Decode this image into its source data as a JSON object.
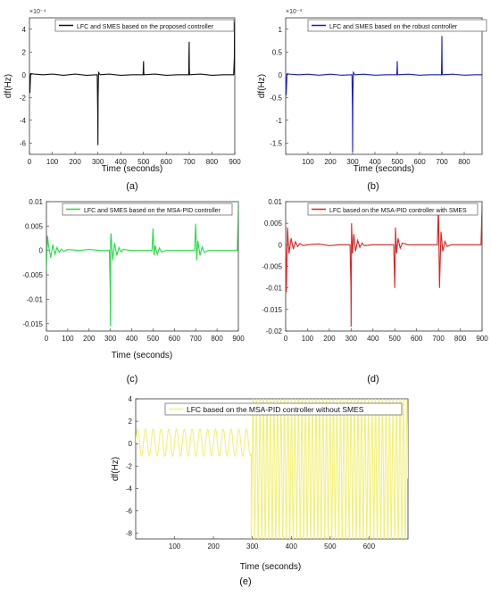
{
  "figure_labels": [
    "(a)",
    "(b)",
    "(c)",
    "(d)",
    "(e)"
  ],
  "chart_data": [
    {
      "type": "line",
      "panel_label": "(a)",
      "title": "",
      "xlabel": "Time (seconds)",
      "ylabel": "df(Hz)",
      "y_exponent": "×10⁻⁴",
      "xlim": [
        0,
        900
      ],
      "ylim": [
        -7,
        5
      ],
      "xticks": [
        0,
        100,
        200,
        300,
        400,
        500,
        600,
        700,
        800,
        900
      ],
      "yticks": [
        4,
        2,
        0,
        -2,
        -4,
        -6
      ],
      "legend_position": "top",
      "series": [
        {
          "name": "LFC and SMES based on the proposed controller",
          "color": "#111111",
          "x": [
            0,
            2,
            5,
            20,
            60,
            100,
            150,
            200,
            250,
            297,
            299,
            300,
            301,
            303,
            310,
            350,
            400,
            450,
            498,
            499,
            500,
            501,
            502,
            550,
            600,
            650,
            698,
            699,
            700,
            701,
            702,
            750,
            800,
            850,
            895,
            898,
            899,
            900
          ],
          "y": [
            0,
            -1.6,
            0.1,
            0.05,
            0,
            0.05,
            -0.05,
            0.05,
            -0.05,
            0,
            -3,
            -6.2,
            -2,
            0.2,
            0,
            0.05,
            -0.05,
            0,
            0,
            0.6,
            1.2,
            0.3,
            0,
            0.05,
            -0.05,
            0,
            0,
            1.5,
            2.9,
            0.5,
            0,
            0.05,
            -0.05,
            0,
            0,
            1.5,
            4.6,
            0
          ]
        }
      ]
    },
    {
      "type": "line",
      "panel_label": "(b)",
      "title": "",
      "xlabel": "Time (seconds)",
      "ylabel": "df(Hz)",
      "y_exponent": "×10⁻³",
      "xlim": [
        0,
        880
      ],
      "ylim": [
        -1.75,
        1.25
      ],
      "xticks": [
        100,
        200,
        300,
        400,
        500,
        600,
        700,
        800
      ],
      "yticks": [
        1,
        0.5,
        0,
        -0.5,
        -1,
        -1.5
      ],
      "legend_position": "top",
      "series": [
        {
          "name": "LFC and SMES based on the robust controller",
          "color": "#1a1acc",
          "x": [
            0,
            2,
            6,
            20,
            60,
            100,
            150,
            200,
            250,
            297,
            299,
            300,
            301,
            303,
            310,
            350,
            400,
            450,
            498,
            499,
            500,
            501,
            502,
            550,
            600,
            650,
            698,
            699,
            700,
            701,
            702,
            750,
            800,
            850,
            880
          ],
          "y": [
            0,
            -0.45,
            0.02,
            0.01,
            0,
            0.01,
            -0.01,
            0.01,
            -0.01,
            0,
            -0.8,
            -1.7,
            -0.4,
            0.05,
            0,
            0.01,
            -0.01,
            0,
            0,
            0.15,
            0.3,
            0.05,
            0,
            0.01,
            -0.01,
            0,
            0,
            0.4,
            0.85,
            0.1,
            0,
            0.01,
            -0.01,
            0,
            0
          ]
        }
      ]
    },
    {
      "type": "line",
      "panel_label": "(c)",
      "title": "",
      "xlabel": "Time (seconds)",
      "ylabel": "",
      "xlim": [
        0,
        900
      ],
      "ylim": [
        -0.0165,
        0.01
      ],
      "xticks": [
        0,
        100,
        200,
        300,
        400,
        500,
        600,
        700,
        800,
        900
      ],
      "yticks": [
        0.01,
        0.005,
        0,
        -0.005,
        -0.01,
        -0.015
      ],
      "ytick_labels": [
        "0.01",
        "0.005",
        "0",
        "-0.005",
        "-0.01",
        "-0.015"
      ],
      "legend_position": "top",
      "series": [
        {
          "name": "LFC and SMES based on the MSA-PID controller",
          "color": "#22dd44",
          "x": [
            0,
            5,
            10,
            20,
            30,
            40,
            50,
            60,
            70,
            80,
            100,
            150,
            200,
            250,
            295,
            299,
            300,
            301,
            303,
            310,
            320,
            330,
            340,
            350,
            360,
            400,
            450,
            495,
            500,
            505,
            510,
            520,
            530,
            540,
            560,
            600,
            650,
            695,
            700,
            705,
            710,
            720,
            730,
            740,
            760,
            800,
            850,
            895,
            900
          ],
          "y": [
            -0.004,
            0.003,
            0.001,
            -0.0015,
            0.0012,
            -0.0008,
            0.0006,
            -0.0004,
            0.0003,
            -0.0002,
            0.0002,
            0,
            0.0002,
            0,
            0,
            -0.008,
            -0.0155,
            0.002,
            0.0035,
            -0.002,
            0.0015,
            -0.001,
            0.0006,
            -0.0003,
            0.0002,
            0,
            0,
            0,
            0.0045,
            -0.001,
            0.001,
            -0.0008,
            0.0005,
            -0.0003,
            0,
            0,
            0,
            0,
            0.0055,
            -0.002,
            0.002,
            -0.001,
            0.0007,
            -0.0004,
            0,
            0,
            0,
            0,
            0.01
          ]
        }
      ]
    },
    {
      "type": "line",
      "panel_label": "(d)",
      "title": "",
      "xlabel": "",
      "ylabel": "",
      "xlim": [
        0,
        900
      ],
      "ylim": [
        -0.02,
        0.01
      ],
      "xticks": [
        0,
        100,
        200,
        300,
        400,
        500,
        600,
        700,
        800,
        900
      ],
      "yticks": [
        0.01,
        0.005,
        0,
        -0.005,
        -0.01,
        -0.015,
        -0.02
      ],
      "ytick_labels": [
        "0.01",
        "0.005",
        "0",
        "-0.005",
        "-0.01",
        "-0.015",
        "-0.02"
      ],
      "legend_position": "top",
      "series": [
        {
          "name": "LFC based on the MSA-PID controller with SMES",
          "color": "#dd2222",
          "x": [
            0,
            3,
            8,
            15,
            25,
            35,
            45,
            55,
            65,
            80,
            100,
            150,
            200,
            250,
            295,
            299,
            300,
            302,
            306,
            312,
            320,
            330,
            340,
            350,
            360,
            400,
            450,
            495,
            500,
            503,
            508,
            515,
            525,
            535,
            560,
            600,
            650,
            695,
            700,
            705,
            712,
            720,
            730,
            740,
            760,
            800,
            850,
            895,
            900
          ],
          "y": [
            0,
            -0.011,
            0.004,
            -0.002,
            0.0015,
            -0.001,
            0.0007,
            -0.0004,
            0.0003,
            -0.0002,
            0,
            0.0002,
            -0.0002,
            0,
            0,
            -0.01,
            -0.019,
            0.005,
            -0.002,
            0.0025,
            -0.0015,
            0.001,
            -0.0006,
            0.0004,
            -0.0002,
            0,
            0,
            0,
            -0.01,
            0.004,
            -0.002,
            0.0015,
            -0.0008,
            0.0004,
            0,
            0,
            0,
            0,
            0.009,
            -0.01,
            0.003,
            -0.0015,
            0.0008,
            -0.0004,
            0,
            0,
            0,
            0,
            0.009
          ]
        }
      ]
    },
    {
      "type": "line",
      "panel_label": "(e)",
      "title": "",
      "xlabel": "Time (seconds)",
      "ylabel": "df(Hz)",
      "xlim": [
        0,
        700
      ],
      "ylim": [
        -8.5,
        4
      ],
      "xticks": [
        100,
        200,
        300,
        400,
        500,
        600
      ],
      "yticks": [
        4,
        2,
        0,
        -2,
        -4,
        -6,
        -8
      ],
      "legend_position": "top-right",
      "series": [
        {
          "name": "LFC based on the MSA-PID controller without SMES",
          "color": "#f2f07a",
          "oscillation_before": {
            "x_start": 0,
            "x_end": 297,
            "period": 20,
            "amplitude": 1.2,
            "offset": 0.1
          },
          "oscillation_after": {
            "x_start": 297,
            "x_end": 700,
            "period": 9,
            "min": -8.5,
            "max": 4
          }
        }
      ]
    }
  ]
}
